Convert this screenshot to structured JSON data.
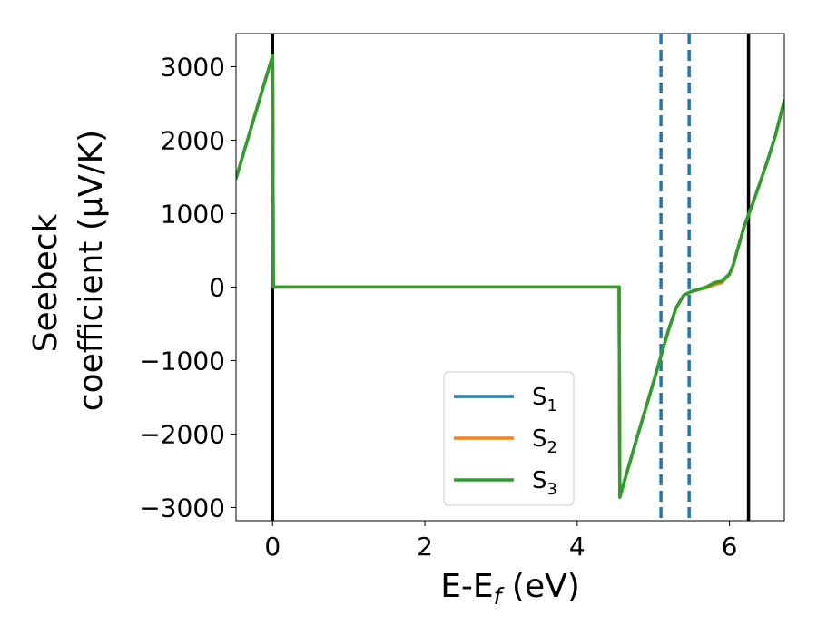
{
  "chart_data": {
    "type": "line",
    "xlabel_main": "E-E",
    "xlabel_sub": "f",
    "xlabel_unit": " (eV)",
    "ylabel_line1": "Seebeck",
    "ylabel_line2": "coefficient  (μV/K)",
    "xlim": [
      -0.48,
      6.72
    ],
    "ylim": [
      -3180,
      3450
    ],
    "xticks": [
      0,
      2,
      4,
      6
    ],
    "xtick_labels": [
      "0",
      "2",
      "4",
      "6"
    ],
    "yticks": [
      -3000,
      -2000,
      -1000,
      0,
      1000,
      2000,
      3000
    ],
    "ytick_labels": [
      "−3000",
      "−2000",
      "−1000",
      "0",
      "1000",
      "2000",
      "3000"
    ],
    "vlines_solid": [
      0.0,
      6.25
    ],
    "vlines_dashed": [
      5.1,
      5.47
    ],
    "series": [
      {
        "name": "S",
        "sub": "1",
        "color": "#1f77b4",
        "x": [
          -0.48,
          0.0,
          0.01,
          4.55,
          4.56,
          4.6,
          4.8,
          5.0,
          5.2,
          5.3,
          5.4,
          5.5,
          5.6,
          5.7,
          5.8,
          5.9,
          6.0,
          6.05,
          6.1,
          6.2,
          6.3,
          6.4,
          6.5,
          6.6,
          6.72
        ],
        "y": [
          1480,
          3150,
          0,
          0,
          -2860,
          -2710,
          -2000,
          -1300,
          -580,
          -280,
          -110,
          -60,
          -30,
          0,
          60,
          80,
          180,
          300,
          490,
          850,
          1120,
          1420,
          1720,
          2050,
          2540
        ]
      },
      {
        "name": "S",
        "sub": "2",
        "color": "#ff7f0e",
        "x": [
          -0.48,
          0.0,
          0.01,
          4.55,
          4.56,
          4.6,
          4.8,
          5.0,
          5.2,
          5.3,
          5.4,
          5.5,
          5.6,
          5.7,
          5.8,
          5.9,
          6.0,
          6.05,
          6.1,
          6.2,
          6.3,
          6.4,
          6.5,
          6.6,
          6.72
        ],
        "y": [
          1480,
          3150,
          0,
          0,
          -2860,
          -2710,
          -2000,
          -1300,
          -580,
          -280,
          -110,
          -60,
          -35,
          -10,
          30,
          60,
          170,
          300,
          490,
          850,
          1120,
          1420,
          1720,
          2050,
          2540
        ]
      },
      {
        "name": "S",
        "sub": "3",
        "color": "#2ca02c",
        "x": [
          -0.48,
          0.0,
          0.01,
          4.55,
          4.56,
          4.6,
          4.8,
          5.0,
          5.2,
          5.3,
          5.4,
          5.5,
          5.6,
          5.7,
          5.8,
          5.9,
          6.0,
          6.05,
          6.1,
          6.2,
          6.3,
          6.4,
          6.5,
          6.6,
          6.72
        ],
        "y": [
          1480,
          3150,
          0,
          0,
          -2860,
          -2710,
          -2000,
          -1300,
          -580,
          -280,
          -110,
          -60,
          -30,
          0,
          60,
          80,
          180,
          300,
          490,
          850,
          1120,
          1420,
          1720,
          2050,
          2540
        ]
      }
    ],
    "legend_position": "lower-center-right",
    "grid": false,
    "vline_color": "#000000",
    "dashed_color": "#1f77b4"
  }
}
